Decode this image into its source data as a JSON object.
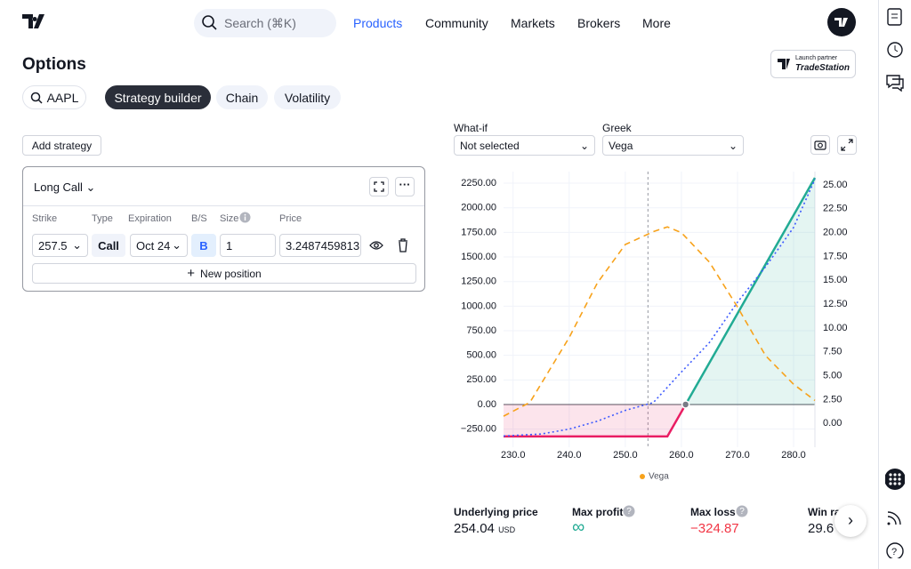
{
  "nav": {
    "search": "Search (⌘K)",
    "links": [
      "Products",
      "Community",
      "Markets",
      "Brokers",
      "More"
    ]
  },
  "header": {
    "title": "Options",
    "partner_top": "Launch partner",
    "partner_name": "TradeStation"
  },
  "tabs": {
    "symbol": "AAPL",
    "items": [
      "Strategy builder",
      "Chain",
      "Volatility"
    ]
  },
  "strategy": {
    "add": "Add strategy",
    "name": "Long Call",
    "columns": [
      "Strike",
      "Type",
      "Expiration",
      "B/S",
      "Size",
      "Price"
    ],
    "row": [
      "257.5",
      "Call",
      "Oct 24",
      "B",
      "1",
      "3.2487459813"
    ],
    "new_position": "New position"
  },
  "controls": {
    "whatif_label": "What-if",
    "whatif_value": "Not selected",
    "greek_label": "Greek",
    "greek_value": "Vega"
  },
  "chart_data": {
    "type": "line",
    "xlim": [
      228.3,
      283.8
    ],
    "xticks": [
      {
        "value": 230,
        "label": "230.0"
      },
      {
        "value": 240,
        "label": "240.0"
      },
      {
        "value": 250,
        "label": "250.0"
      },
      {
        "value": 260,
        "label": "260.0"
      },
      {
        "value": 270,
        "label": "270.0"
      },
      {
        "value": 280,
        "label": "280.0"
      }
    ],
    "ylim": [
      -434,
      2368
    ],
    "yticks": [
      {
        "value": -250,
        "label": "−250.00"
      },
      {
        "value": 0,
        "label": "0.00"
      },
      {
        "value": 250,
        "label": "250.00"
      },
      {
        "value": 500,
        "label": "500.00"
      },
      {
        "value": 750,
        "label": "750.00"
      },
      {
        "value": 1000,
        "label": "1000.00"
      },
      {
        "value": 1250,
        "label": "1250.00"
      },
      {
        "value": 1500,
        "label": "1500.00"
      },
      {
        "value": 1750,
        "label": "1750.00"
      },
      {
        "value": 2000,
        "label": "2000.00"
      },
      {
        "value": 2250,
        "label": "2250.00"
      }
    ],
    "y2lim": [
      -2.5,
      26.4
    ],
    "y2ticks": [
      {
        "value": 0,
        "label": "0.00"
      },
      {
        "value": 2.5,
        "label": "2.50"
      },
      {
        "value": 5,
        "label": "5.00"
      },
      {
        "value": 7.5,
        "label": "7.50"
      },
      {
        "value": 10,
        "label": "10.00"
      },
      {
        "value": 12.5,
        "label": "12.50"
      },
      {
        "value": 15,
        "label": "15.00"
      },
      {
        "value": 17.5,
        "label": "17.50"
      },
      {
        "value": 20,
        "label": "20.00"
      },
      {
        "value": 22.5,
        "label": "22.50"
      },
      {
        "value": 25,
        "label": "25.00"
      }
    ],
    "grid": true,
    "series": [
      {
        "kind": "expiration",
        "color": "#22ab94",
        "negative_color": "#e91e63",
        "x": [
          228.3,
          257.5,
          260.75,
          283.8
        ],
        "values": [
          -324.87,
          -324.87,
          0,
          2305
        ]
      },
      {
        "kind": "theoretical",
        "color": "#3d5afe",
        "x": [
          228.3,
          235,
          240,
          245,
          250,
          255,
          260,
          265,
          270,
          275,
          280,
          283.8
        ],
        "values": [
          -320,
          -300,
          -250,
          -170,
          -60,
          20,
          330,
          630,
          1040,
          1400,
          1800,
          2290
        ]
      },
      {
        "name": "Vega",
        "axis": "y2",
        "color": "#f7a21b",
        "x": [
          228.3,
          233,
          240,
          245,
          250,
          255,
          257.5,
          260,
          265,
          270,
          275,
          280,
          283.8
        ],
        "values": [
          0.75,
          2.2,
          9,
          14.7,
          18.75,
          20.1,
          20.6,
          20,
          16.9,
          12.2,
          7.1,
          4.1,
          2.4
        ]
      }
    ]
  },
  "stats": [
    {
      "label": "Underlying price",
      "value": 254.04,
      "unit": "USD"
    },
    {
      "label": "Max profit",
      "value": "∞"
    },
    {
      "label": "Max loss",
      "value": "−324.87"
    },
    {
      "label": "Win ra",
      "value": "29.6"
    }
  ]
}
